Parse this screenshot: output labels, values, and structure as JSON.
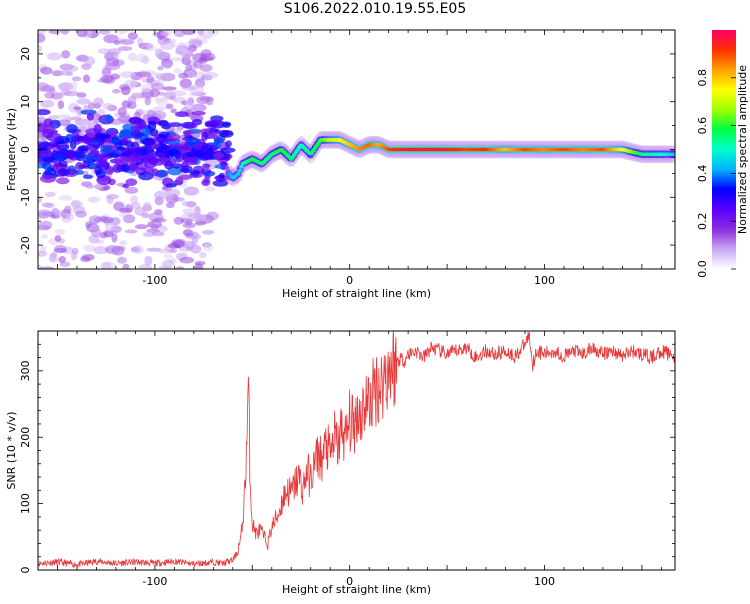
{
  "figure": {
    "title": "S106.2022.010.19.55.E05"
  },
  "chart_data": [
    {
      "type": "heatmap",
      "xlabel": "Height of straight line (km)",
      "ylabel": "Frequency (Hz)",
      "xlim": [
        -160,
        167
      ],
      "ylim": [
        -25,
        25
      ],
      "xticks": [
        -100,
        0,
        100
      ],
      "yticks": [
        -20,
        -10,
        0,
        10,
        20
      ],
      "grid": false,
      "colorbar": {
        "label": "Normalized spectral amplitude",
        "range": [
          0,
          1
        ],
        "ticks": [
          "0.0",
          "0.2",
          "0.4",
          "0.6",
          "0.8"
        ],
        "tick_values": [
          0.0,
          0.2,
          0.4,
          0.6,
          0.8
        ],
        "colormap": "rainbow",
        "colors": [
          "#ffffff",
          "#c9a6f2",
          "#8b2be0",
          "#5b00ff",
          "#0000ff",
          "#00b3ff",
          "#00ffcc",
          "#00ff40",
          "#a0ff00",
          "#ffff00",
          "#ffa000",
          "#ff3000",
          "#ff006a"
        ]
      },
      "ridge": {
        "x": [
          -160,
          -140,
          -120,
          -100,
          -85,
          -75,
          -70,
          -65,
          -62,
          -60,
          -57,
          -55,
          -50,
          -45,
          -40,
          -35,
          -30,
          -25,
          -20,
          -15,
          -10,
          -5,
          0,
          5,
          10,
          15,
          20,
          30,
          40,
          50,
          60,
          70,
          80,
          90,
          100,
          110,
          120,
          130,
          140,
          150,
          160,
          167
        ],
        "y": [
          0,
          1,
          -1,
          1,
          -1,
          0,
          -1,
          -4,
          -5,
          -6,
          -5,
          -3,
          -2,
          -3,
          -1,
          0,
          -2,
          1,
          -1,
          2,
          2,
          2,
          1,
          0,
          1,
          1,
          0,
          0,
          0,
          0,
          0,
          0,
          0,
          0,
          0,
          0,
          0,
          0,
          0,
          -1,
          -1,
          -1
        ],
        "amplitude": [
          0.25,
          0.28,
          0.26,
          0.3,
          0.28,
          0.26,
          0.3,
          0.35,
          0.4,
          0.45,
          0.45,
          0.5,
          0.6,
          0.55,
          0.55,
          0.6,
          0.55,
          0.5,
          0.55,
          0.6,
          0.7,
          0.75,
          0.8,
          0.85,
          0.88,
          0.82,
          0.9,
          0.95,
          0.95,
          0.95,
          0.9,
          0.92,
          0.8,
          0.9,
          0.85,
          0.9,
          0.85,
          0.9,
          0.75,
          0.55,
          0.5,
          0.45
        ]
      }
    },
    {
      "type": "line",
      "xlabel": "Height of straight line (km)",
      "ylabel": "SNR (10 * v/v)",
      "xlim": [
        -160,
        167
      ],
      "ylim": [
        0,
        360
      ],
      "xticks": [
        -100,
        0,
        100
      ],
      "yticks": [
        0,
        100,
        200,
        300
      ],
      "grid": false,
      "series": [
        {
          "color": "#e8383a",
          "x": [
            -160,
            -150,
            -140,
            -130,
            -120,
            -110,
            -100,
            -90,
            -80,
            -70,
            -65,
            -60,
            -58,
            -56,
            -55,
            -54,
            -53,
            -52,
            -51,
            -50,
            -48,
            -46,
            -44,
            -42,
            -40,
            -38,
            -36,
            -34,
            -32,
            -30,
            -28,
            -26,
            -24,
            -22,
            -20,
            -18,
            -16,
            -14,
            -12,
            -10,
            -8,
            -6,
            -4,
            -2,
            0,
            2,
            4,
            6,
            8,
            10,
            12,
            14,
            16,
            18,
            20,
            22,
            24,
            26,
            28,
            30,
            34,
            38,
            42,
            46,
            50,
            55,
            60,
            65,
            70,
            75,
            80,
            85,
            90,
            92,
            94,
            96,
            100,
            105,
            110,
            115,
            120,
            125,
            130,
            135,
            140,
            145,
            150,
            155,
            160,
            167
          ],
          "y": [
            10,
            12,
            8,
            13,
            10,
            12,
            10,
            13,
            9,
            12,
            10,
            15,
            25,
            45,
            70,
            110,
            180,
            275,
            130,
            70,
            55,
            60,
            50,
            40,
            65,
            75,
            90,
            110,
            120,
            115,
            130,
            140,
            120,
            150,
            135,
            160,
            175,
            165,
            190,
            170,
            200,
            185,
            215,
            195,
            225,
            215,
            240,
            235,
            255,
            250,
            265,
            280,
            275,
            295,
            300,
            310,
            305,
            320,
            315,
            325,
            330,
            320,
            335,
            330,
            325,
            330,
            335,
            320,
            330,
            325,
            330,
            322,
            340,
            355,
            310,
            330,
            325,
            330,
            322,
            330,
            325,
            335,
            325,
            330,
            322,
            330,
            325,
            320,
            330,
            322
          ]
        }
      ]
    }
  ]
}
